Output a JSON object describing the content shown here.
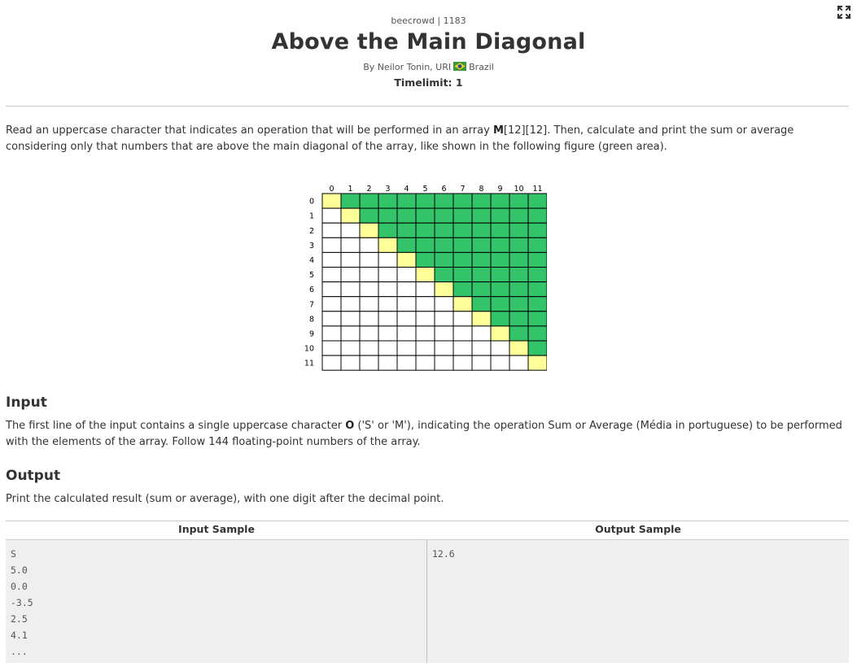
{
  "header": {
    "crumb": "beecrowd | 1183",
    "title": "Above the Main Diagonal",
    "author_prefix": "By Neilor Tonin, URI",
    "author_country": "Brazil",
    "timelimit": "Timelimit: 1"
  },
  "description": {
    "text_before": "Read an uppercase character that indicates an operation that will be performed in an array ",
    "bold_M": "M",
    "text_after": "[12][12]. Then, calculate and print the sum or average considering only that numbers that are above the main diagonal of the array, like shown in the following figure (green area)."
  },
  "figure": {
    "col_labels": [
      "0",
      "1",
      "2",
      "3",
      "4",
      "5",
      "6",
      "7",
      "8",
      "9",
      "10",
      "11"
    ],
    "row_labels": [
      "0",
      "1",
      "2",
      "3",
      "4",
      "5",
      "6",
      "7",
      "8",
      "9",
      "10",
      "11"
    ],
    "colors": {
      "above": "#33c46a",
      "diagonal": "#ffff99",
      "below": "#ffffff",
      "line": "#000000"
    }
  },
  "input_section": {
    "heading": "Input",
    "text_before": "The first line of the input contains a single uppercase character ",
    "bold_O": "O",
    "text_after": " ('S' or 'M'), indicating the operation Sum or Average (Média in portuguese) to be performed with the elements of the array. Follow 144 floating-point numbers of the array."
  },
  "output_section": {
    "heading": "Output",
    "text": "Print the calculated result (sum or average), with one digit after the decimal point."
  },
  "samples": {
    "input_header": "Input Sample",
    "output_header": "Output Sample",
    "input_lines": [
      "S",
      "5.0",
      "0.0",
      "-3.5",
      "2.5",
      "4.1",
      "..."
    ],
    "output_lines": [
      "12.6"
    ]
  },
  "icons": {
    "expand": "expand-icon",
    "flag": "brazil-flag-icon"
  },
  "colors": {
    "text": "#333333",
    "rule": "#c8c8c8",
    "sample_bg": "#efefef"
  }
}
